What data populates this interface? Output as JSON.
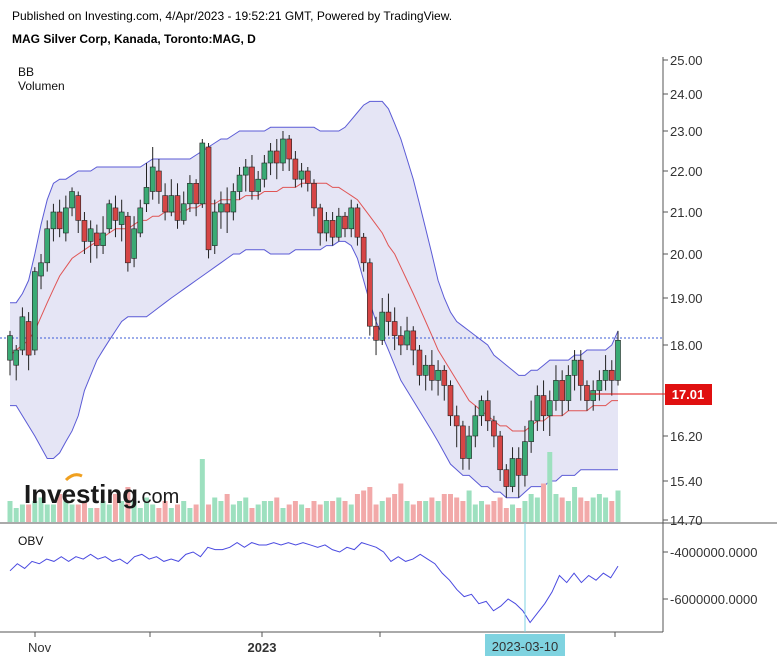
{
  "header": {
    "published": "Published on Investing.com, 4/Apr/2023 - 19:52:21 GMT, Powered by TradingView.",
    "title": "MAG Silver Corp, Kanada, Toronto:MAG, D"
  },
  "legend": {
    "bb": "BB",
    "volume": "Volumen",
    "obv": "OBV"
  },
  "watermark": {
    "brand": "Investing",
    "suffix": ".com"
  },
  "price_badge": "17.01",
  "crosshair_label": "2023-03-10",
  "colors": {
    "up": "#3aaa74",
    "down": "#d64545",
    "bb_band": "#5b5bd6",
    "bb_fill": "#e5e5f5",
    "bb_mid": "#e05555",
    "obv": "#4a4ae0",
    "badge": "#e01010",
    "crosshair": "#7fd3e0"
  },
  "chart_data": [
    {
      "type": "candlestick",
      "title": "MAG Silver Corp, Kanada, Toronto:MAG, D",
      "y_ticks": [
        "25.00",
        "24.00",
        "23.00",
        "22.00",
        "21.00",
        "20.00",
        "19.00",
        "18.00",
        "16.20",
        "15.40",
        "14.70"
      ],
      "x_ticks": [
        "Nov",
        "2023"
      ],
      "last_price": 17.01,
      "reference_line": 18.15,
      "series_ohlc": [
        [
          17.7,
          18.2,
          17.4,
          18.3
        ],
        [
          17.6,
          17.9,
          17.3,
          18.0
        ],
        [
          17.9,
          18.6,
          17.8,
          18.8
        ],
        [
          18.5,
          17.8,
          17.5,
          18.7
        ],
        [
          17.9,
          19.6,
          17.8,
          19.7
        ],
        [
          19.5,
          19.8,
          19.2,
          20.0
        ],
        [
          19.8,
          20.6,
          19.6,
          20.8
        ],
        [
          20.6,
          21.0,
          20.3,
          21.2
        ],
        [
          21.0,
          20.6,
          20.4,
          21.3
        ],
        [
          20.5,
          21.1,
          20.3,
          21.4
        ],
        [
          21.1,
          21.5,
          20.9,
          21.6
        ],
        [
          21.4,
          20.8,
          20.5,
          21.5
        ],
        [
          20.8,
          20.3,
          20.0,
          21.0
        ],
        [
          20.3,
          20.6,
          19.8,
          20.8
        ],
        [
          20.5,
          20.2,
          19.9,
          20.7
        ],
        [
          20.2,
          20.5,
          20.0,
          20.9
        ],
        [
          20.6,
          21.2,
          20.5,
          21.3
        ],
        [
          21.1,
          20.8,
          20.4,
          21.4
        ],
        [
          20.7,
          21.0,
          20.3,
          21.3
        ],
        [
          20.9,
          19.8,
          19.6,
          21.0
        ],
        [
          19.9,
          20.6,
          19.7,
          20.9
        ],
        [
          20.5,
          21.1,
          20.4,
          21.3
        ],
        [
          21.2,
          21.6,
          21.0,
          22.2
        ],
        [
          21.5,
          22.1,
          21.3,
          22.6
        ],
        [
          22.0,
          21.5,
          21.2,
          22.3
        ],
        [
          21.4,
          21.0,
          20.8,
          21.7
        ],
        [
          21.0,
          21.4,
          20.9,
          21.8
        ],
        [
          21.4,
          20.8,
          20.6,
          21.7
        ],
        [
          20.8,
          21.2,
          20.7,
          21.5
        ],
        [
          21.2,
          21.7,
          21.0,
          21.9
        ],
        [
          21.7,
          21.2,
          20.9,
          21.8
        ],
        [
          21.2,
          22.7,
          21.1,
          22.8
        ],
        [
          22.6,
          20.1,
          19.9,
          22.7
        ],
        [
          20.2,
          21.0,
          20.0,
          21.3
        ],
        [
          21.0,
          21.2,
          20.6,
          21.5
        ],
        [
          21.2,
          21.0,
          20.5,
          21.6
        ],
        [
          21.0,
          21.5,
          20.8,
          21.7
        ],
        [
          21.5,
          21.9,
          21.3,
          22.1
        ],
        [
          21.9,
          22.1,
          21.5,
          22.3
        ],
        [
          22.1,
          21.5,
          21.3,
          22.4
        ],
        [
          21.5,
          21.8,
          21.3,
          22.0
        ],
        [
          21.8,
          22.2,
          21.6,
          22.4
        ],
        [
          22.2,
          22.5,
          21.9,
          22.7
        ],
        [
          22.5,
          22.2,
          21.8,
          22.8
        ],
        [
          22.2,
          22.8,
          22.0,
          23.0
        ],
        [
          22.8,
          22.3,
          22.0,
          22.9
        ],
        [
          22.3,
          21.8,
          21.6,
          22.5
        ],
        [
          21.8,
          22.0,
          21.6,
          22.2
        ],
        [
          22.0,
          21.7,
          21.5,
          22.1
        ],
        [
          21.7,
          21.1,
          20.9,
          21.8
        ],
        [
          21.1,
          20.5,
          20.2,
          21.2
        ],
        [
          20.5,
          20.8,
          20.3,
          21.0
        ],
        [
          20.8,
          20.4,
          20.2,
          21.0
        ],
        [
          20.4,
          20.9,
          20.3,
          21.1
        ],
        [
          20.9,
          20.6,
          20.4,
          21.0
        ],
        [
          20.6,
          21.1,
          20.4,
          21.3
        ],
        [
          21.1,
          20.4,
          20.2,
          21.2
        ],
        [
          20.4,
          19.8,
          19.6,
          20.5
        ],
        [
          19.8,
          18.4,
          18.2,
          19.9
        ],
        [
          18.4,
          18.1,
          17.8,
          18.6
        ],
        [
          18.1,
          18.7,
          18.0,
          19.0
        ],
        [
          18.7,
          18.5,
          18.2,
          19.1
        ],
        [
          18.5,
          18.2,
          17.9,
          18.8
        ],
        [
          18.2,
          18.0,
          17.8,
          18.4
        ],
        [
          18.0,
          18.3,
          17.9,
          18.6
        ],
        [
          18.3,
          17.9,
          17.6,
          18.4
        ],
        [
          17.9,
          17.4,
          17.2,
          18.0
        ],
        [
          17.4,
          17.6,
          17.1,
          17.8
        ],
        [
          17.6,
          17.3,
          17.1,
          17.9
        ],
        [
          17.3,
          17.5,
          17.0,
          17.7
        ],
        [
          17.5,
          17.2,
          16.9,
          17.6
        ],
        [
          17.2,
          16.6,
          16.4,
          17.3
        ],
        [
          16.6,
          16.4,
          16.0,
          16.8
        ],
        [
          16.4,
          15.8,
          15.6,
          16.5
        ],
        [
          15.8,
          16.2,
          15.6,
          16.4
        ],
        [
          16.2,
          16.6,
          16.0,
          16.8
        ],
        [
          16.6,
          16.9,
          16.4,
          17.0
        ],
        [
          16.9,
          16.5,
          16.3,
          17.1
        ],
        [
          16.5,
          16.2,
          16.0,
          16.6
        ],
        [
          16.2,
          15.6,
          15.4,
          16.3
        ],
        [
          15.6,
          15.3,
          15.1,
          15.7
        ],
        [
          15.3,
          15.8,
          15.2,
          16.0
        ],
        [
          15.8,
          15.5,
          15.1,
          16.0
        ],
        [
          15.5,
          16.1,
          15.3,
          16.4
        ],
        [
          16.1,
          16.5,
          15.9,
          16.9
        ],
        [
          16.5,
          17.0,
          16.3,
          17.2
        ],
        [
          17.0,
          16.6,
          16.3,
          17.3
        ],
        [
          16.6,
          16.9,
          16.2,
          17.1
        ],
        [
          16.9,
          17.3,
          16.7,
          17.6
        ],
        [
          17.3,
          16.9,
          16.6,
          17.5
        ],
        [
          16.9,
          17.4,
          16.7,
          17.6
        ],
        [
          17.4,
          17.7,
          17.1,
          17.9
        ],
        [
          17.7,
          17.2,
          16.9,
          17.9
        ],
        [
          17.2,
          16.9,
          16.7,
          17.3
        ],
        [
          16.9,
          17.1,
          16.7,
          17.3
        ],
        [
          17.1,
          17.3,
          16.9,
          17.5
        ],
        [
          17.3,
          17.5,
          17.1,
          17.8
        ],
        [
          17.5,
          17.3,
          17.0,
          17.7
        ],
        [
          17.3,
          18.1,
          17.2,
          18.3
        ]
      ],
      "bollinger": {
        "upper": [
          18.9,
          18.9,
          19.1,
          19.4,
          20.0,
          20.7,
          21.3,
          21.7,
          21.8,
          21.8,
          21.9,
          22.0,
          22.0,
          22.0,
          22.1,
          22.1,
          22.1,
          22.1,
          22.1,
          22.1,
          22.1,
          22.1,
          22.2,
          22.3,
          22.3,
          22.3,
          22.3,
          22.3,
          22.3,
          22.3,
          22.4,
          22.5,
          22.6,
          22.7,
          22.8,
          22.8,
          22.9,
          23.0,
          23.0,
          23.0,
          23.0,
          23.0,
          23.1,
          23.1,
          23.1,
          23.1,
          23.1,
          23.1,
          23.1,
          23.1,
          23.0,
          23.0,
          23.0,
          23.0,
          23.1,
          23.3,
          23.5,
          23.7,
          23.8,
          23.8,
          23.8,
          23.6,
          23.2,
          22.8,
          22.3,
          21.8,
          21.2,
          20.6,
          20.0,
          19.4,
          19.0,
          18.7,
          18.5,
          18.4,
          18.3,
          18.2,
          18.1,
          18.0,
          17.8,
          17.7,
          17.6,
          17.5,
          17.4,
          17.4,
          17.5,
          17.5,
          17.6,
          17.7,
          17.7,
          17.7,
          17.7,
          17.8,
          17.8,
          17.9,
          17.9,
          17.9,
          17.9,
          18.0,
          18.3
        ],
        "middle": [
          17.8,
          17.9,
          18.0,
          18.1,
          18.3,
          18.6,
          18.9,
          19.2,
          19.5,
          19.7,
          19.9,
          20.0,
          20.1,
          20.2,
          20.3,
          20.4,
          20.5,
          20.6,
          20.6,
          20.6,
          20.7,
          20.8,
          20.8,
          20.9,
          20.9,
          21.0,
          21.0,
          21.0,
          21.0,
          21.1,
          21.1,
          21.2,
          21.2,
          21.2,
          21.3,
          21.3,
          21.3,
          21.3,
          21.4,
          21.4,
          21.4,
          21.5,
          21.5,
          21.5,
          21.6,
          21.6,
          21.6,
          21.7,
          21.7,
          21.7,
          21.7,
          21.7,
          21.6,
          21.6,
          21.5,
          21.4,
          21.3,
          21.1,
          20.9,
          20.7,
          20.5,
          20.2,
          20.0,
          19.7,
          19.4,
          19.1,
          18.8,
          18.5,
          18.2,
          17.9,
          17.7,
          17.5,
          17.3,
          17.1,
          16.9,
          16.8,
          16.7,
          16.6,
          16.5,
          16.4,
          16.4,
          16.3,
          16.3,
          16.3,
          16.4,
          16.5,
          16.5,
          16.6,
          16.6,
          16.6,
          16.7,
          16.7,
          16.7,
          16.7,
          16.8,
          16.8,
          16.8,
          16.9,
          16.9
        ],
        "lower": [
          16.8,
          16.8,
          16.6,
          16.4,
          16.2,
          16.0,
          15.8,
          15.8,
          15.9,
          16.1,
          16.3,
          16.6,
          17.1,
          17.4,
          17.7,
          17.9,
          18.1,
          18.3,
          18.5,
          18.6,
          18.6,
          18.6,
          18.6,
          18.7,
          18.8,
          18.9,
          19.0,
          19.1,
          19.2,
          19.3,
          19.4,
          19.5,
          19.6,
          19.7,
          19.8,
          19.9,
          20.0,
          20.0,
          20.1,
          20.1,
          20.1,
          20.1,
          20.0,
          20.0,
          20.0,
          20.0,
          20.1,
          20.1,
          20.1,
          20.1,
          20.1,
          20.2,
          20.2,
          20.3,
          20.3,
          20.2,
          19.9,
          19.4,
          18.9,
          18.5,
          18.2,
          17.9,
          17.6,
          17.3,
          17.1,
          16.9,
          16.7,
          16.5,
          16.3,
          16.1,
          15.9,
          15.7,
          15.6,
          15.5,
          15.5,
          15.4,
          15.3,
          15.3,
          15.2,
          15.2,
          15.1,
          15.1,
          15.1,
          15.2,
          15.3,
          15.3,
          15.3,
          15.4,
          15.4,
          15.5,
          15.5,
          15.5,
          15.6,
          15.6,
          15.6,
          15.6,
          15.6,
          15.6,
          15.6
        ]
      }
    },
    {
      "type": "bar",
      "title": "Volumen",
      "values": [
        30,
        20,
        25,
        25,
        30,
        35,
        25,
        25,
        40,
        30,
        25,
        25,
        30,
        20,
        20,
        30,
        25,
        40,
        30,
        50,
        30,
        20,
        35,
        25,
        20,
        30,
        20,
        25,
        30,
        20,
        25,
        90,
        25,
        35,
        30,
        40,
        25,
        30,
        35,
        20,
        25,
        30,
        30,
        35,
        20,
        25,
        30,
        25,
        20,
        30,
        25,
        30,
        30,
        35,
        30,
        25,
        40,
        45,
        50,
        25,
        30,
        35,
        40,
        55,
        30,
        25,
        30,
        30,
        35,
        30,
        40,
        40,
        35,
        30,
        45,
        25,
        30,
        25,
        30,
        35,
        20,
        25,
        20,
        30,
        40,
        35,
        55,
        100,
        40,
        35,
        30,
        50,
        35,
        30,
        35,
        40,
        35,
        30,
        45
      ]
    },
    {
      "type": "line",
      "title": "OBV",
      "y_ticks": [
        "-4000000.0000",
        "-6000000.0000"
      ],
      "values": [
        -4.8,
        -4.5,
        -4.7,
        -4.4,
        -4.5,
        -4.3,
        -4.4,
        -4.2,
        -4.4,
        -4.2,
        -4.3,
        -4.1,
        -4.3,
        -4.2,
        -4.4,
        -4.3,
        -4.5,
        -4.2,
        -4.1,
        -4.3,
        -4.2,
        -4.4,
        -4.3,
        -4.4,
        -4.1,
        -4.0,
        -4.2,
        -3.8,
        -3.9,
        -3.9,
        -3.8,
        -3.6,
        -3.8,
        -3.6,
        -3.7,
        -3.7,
        -3.6,
        -3.7,
        -3.6,
        -3.7,
        -3.6,
        -3.7,
        -3.8,
        -3.7,
        -3.9,
        -4.0,
        -3.8,
        -3.9,
        -3.6,
        -3.7,
        -3.8,
        -4.0,
        -4.4,
        -4.2,
        -4.4,
        -4.3,
        -4.1,
        -4.3,
        -4.5,
        -4.9,
        -5.2,
        -5.6,
        -5.9,
        -5.8,
        -6.2,
        -6.1,
        -6.5,
        -6.3,
        -6.0,
        -6.2,
        -6.5,
        -7.0,
        -6.6,
        -6.2,
        -5.7,
        -5.0,
        -5.3,
        -4.9,
        -5.3,
        -5.0,
        -5.2,
        -4.9,
        -5.1,
        -4.6
      ]
    }
  ]
}
